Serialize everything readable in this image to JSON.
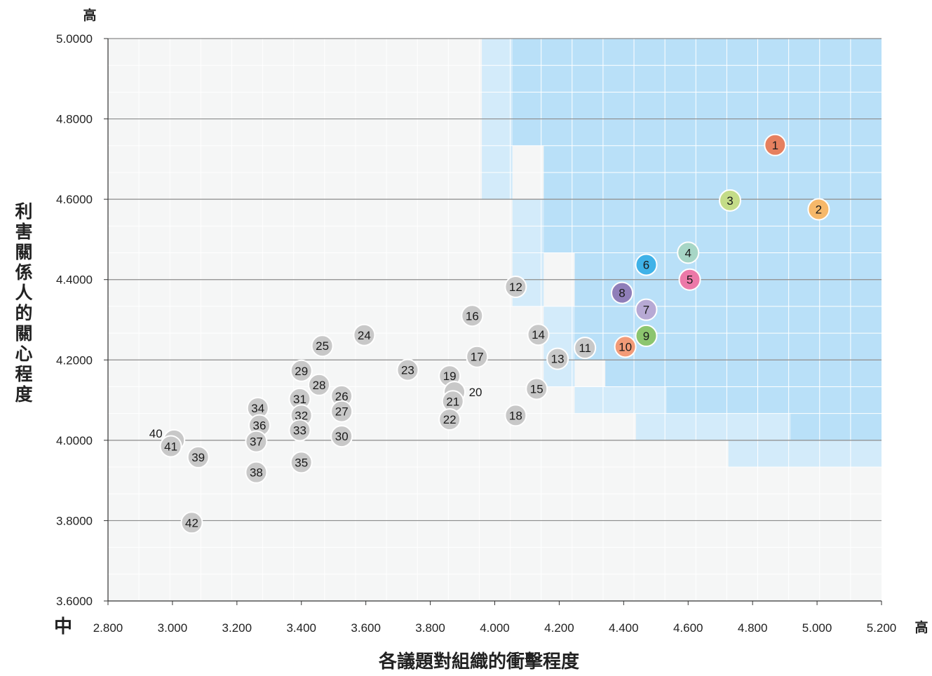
{
  "chart_data": {
    "type": "scatter",
    "title": "",
    "xlabel": "各議題對組織的衝擊程度",
    "ylabel": "利害關係人的關心程度",
    "x_low_label": "中",
    "x_high_label": "高",
    "y_high_label": "高",
    "xlim": [
      2.8,
      5.2
    ],
    "ylim": [
      3.6,
      5.0
    ],
    "x_ticks": [
      "2.800",
      "3.000",
      "3.200",
      "3.400",
      "3.600",
      "3.800",
      "4.000",
      "4.200",
      "4.400",
      "4.600",
      "4.800",
      "5.000",
      "5.200"
    ],
    "y_ticks": [
      "3.6000",
      "3.8000",
      "4.0000",
      "4.2000",
      "4.4000",
      "4.6000",
      "4.8000",
      "5.0000"
    ],
    "grid": true,
    "colors": {
      "plot_bg": "#f5f6f6",
      "minor_grid": "#ffffff",
      "major_grid": "#8a8a8a",
      "zone_light": "#d3ebfa",
      "zone_dark": "#b9e0f8",
      "default_point": "#c8c8c8"
    },
    "points": [
      {
        "label": "1",
        "x": 4.87,
        "y": 4.735,
        "color": "#e6805f"
      },
      {
        "label": "2",
        "x": 5.005,
        "y": 4.575,
        "color": "#f6b86a"
      },
      {
        "label": "3",
        "x": 4.73,
        "y": 4.597,
        "color": "#c4dc88"
      },
      {
        "label": "4",
        "x": 4.6,
        "y": 4.467,
        "color": "#a7d6c6"
      },
      {
        "label": "5",
        "x": 4.605,
        "y": 4.4,
        "color": "#ec79a8"
      },
      {
        "label": "6",
        "x": 4.47,
        "y": 4.437,
        "color": "#3fb2e8"
      },
      {
        "label": "7",
        "x": 4.47,
        "y": 4.325,
        "color": "#b7a9d4"
      },
      {
        "label": "8",
        "x": 4.395,
        "y": 4.367,
        "color": "#8f7eb9"
      },
      {
        "label": "9",
        "x": 4.47,
        "y": 4.26,
        "color": "#8cc56e"
      },
      {
        "label": "10",
        "x": 4.405,
        "y": 4.233,
        "color": "#f29b78"
      },
      {
        "label": "11",
        "x": 4.28,
        "y": 4.23
      },
      {
        "label": "12",
        "x": 4.065,
        "y": 4.382
      },
      {
        "label": "13",
        "x": 4.195,
        "y": 4.203
      },
      {
        "label": "14",
        "x": 4.135,
        "y": 4.263
      },
      {
        "label": "15",
        "x": 4.13,
        "y": 4.128
      },
      {
        "label": "16",
        "x": 3.93,
        "y": 4.31
      },
      {
        "label": "17",
        "x": 3.945,
        "y": 4.208
      },
      {
        "label": "18",
        "x": 4.065,
        "y": 4.062
      },
      {
        "label": "19",
        "x": 3.86,
        "y": 4.16
      },
      {
        "label": "20",
        "x": 3.875,
        "y": 4.12,
        "label_dx": 30
      },
      {
        "label": "21",
        "x": 3.87,
        "y": 4.097
      },
      {
        "label": "22",
        "x": 3.86,
        "y": 4.052
      },
      {
        "label": "23",
        "x": 3.73,
        "y": 4.175
      },
      {
        "label": "24",
        "x": 3.595,
        "y": 4.262
      },
      {
        "label": "25",
        "x": 3.465,
        "y": 4.235
      },
      {
        "label": "26",
        "x": 3.525,
        "y": 4.11
      },
      {
        "label": "27",
        "x": 3.525,
        "y": 4.072
      },
      {
        "label": "28",
        "x": 3.455,
        "y": 4.138
      },
      {
        "label": "29",
        "x": 3.4,
        "y": 4.173
      },
      {
        "label": "30",
        "x": 3.525,
        "y": 4.01
      },
      {
        "label": "31",
        "x": 3.395,
        "y": 4.103
      },
      {
        "label": "32",
        "x": 3.4,
        "y": 4.062
      },
      {
        "label": "33",
        "x": 3.395,
        "y": 4.025
      },
      {
        "label": "34",
        "x": 3.265,
        "y": 4.08
      },
      {
        "label": "35",
        "x": 3.4,
        "y": 3.945
      },
      {
        "label": "36",
        "x": 3.27,
        "y": 4.037
      },
      {
        "label": "37",
        "x": 3.26,
        "y": 3.997
      },
      {
        "label": "38",
        "x": 3.26,
        "y": 3.92
      },
      {
        "label": "39",
        "x": 3.08,
        "y": 3.958
      },
      {
        "label": "40",
        "x": 3.005,
        "y": 4.0,
        "label_dx": -26,
        "label_dy": -10
      },
      {
        "label": "41",
        "x": 2.995,
        "y": 3.985
      },
      {
        "label": "42",
        "x": 3.06,
        "y": 3.795
      }
    ],
    "highlight_zones": [
      {
        "tone": "light",
        "x0": 3.96,
        "x1": 4.055,
        "y0": 4.6,
        "y1": 5.0
      },
      {
        "tone": "light",
        "x0": 4.055,
        "x1": 4.152,
        "y0": 4.333,
        "y1": 4.6
      },
      {
        "tone": "light",
        "x0": 4.152,
        "x1": 4.248,
        "y0": 4.133,
        "y1": 4.333
      },
      {
        "tone": "light",
        "x0": 4.248,
        "x1": 4.533,
        "y0": 4.067,
        "y1": 4.133
      },
      {
        "tone": "light",
        "x0": 4.438,
        "x1": 4.918,
        "y0": 4.0,
        "y1": 4.067
      },
      {
        "tone": "light",
        "x0": 4.725,
        "x1": 5.2,
        "y0": 3.933,
        "y1": 4.0
      },
      {
        "tone": "dark",
        "x0": 4.055,
        "x1": 5.2,
        "y0": 4.733,
        "y1": 5.0
      },
      {
        "tone": "dark",
        "x0": 4.152,
        "x1": 5.2,
        "y0": 4.467,
        "y1": 4.733
      },
      {
        "tone": "dark",
        "x0": 4.248,
        "x1": 5.2,
        "y0": 4.2,
        "y1": 4.467
      },
      {
        "tone": "dark",
        "x0": 4.343,
        "x1": 5.2,
        "y0": 4.133,
        "y1": 4.2
      },
      {
        "tone": "dark",
        "x0": 4.533,
        "x1": 5.2,
        "y0": 4.067,
        "y1": 4.133
      },
      {
        "tone": "dark",
        "x0": 4.918,
        "x1": 5.2,
        "y0": 4.0,
        "y1": 4.067
      }
    ]
  }
}
